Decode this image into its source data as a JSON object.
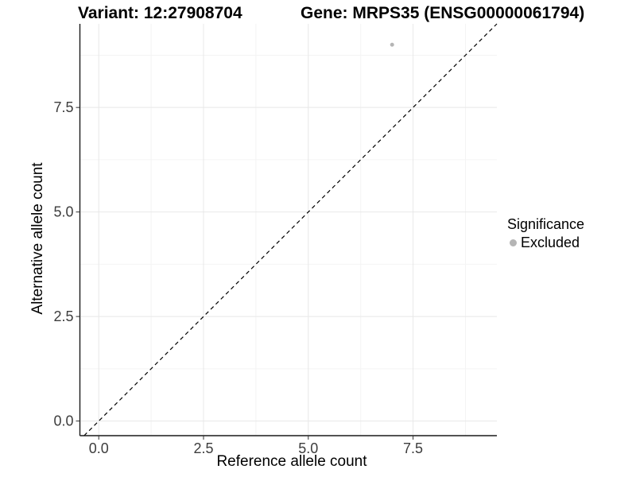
{
  "chart_data": {
    "type": "scatter",
    "title_left": "Variant: 12:27908704",
    "title_right": "Gene: MRPS35 (ENSG00000061794)",
    "xlabel": "Reference allele count",
    "ylabel": "Alternative allele count",
    "xlim": [
      -0.45,
      9.5
    ],
    "ylim": [
      -0.35,
      9.5
    ],
    "xticks": {
      "values": [
        0,
        2.5,
        5,
        7.5
      ],
      "labels": [
        "0.0",
        "2.5",
        "5.0",
        "7.5"
      ]
    },
    "yticks": {
      "values": [
        0,
        2.5,
        5,
        7.5
      ],
      "labels": [
        "0.0",
        "2.5",
        "5.0",
        "7.5"
      ]
    },
    "minor_xticks": [
      1.25,
      3.75,
      6.25,
      8.75
    ],
    "minor_yticks": [
      1.25,
      3.75,
      6.25,
      8.75
    ],
    "grid": "major+minor",
    "series": [
      {
        "name": "Excluded",
        "color": "#b5b5b5",
        "points": [
          {
            "x": 7,
            "y": 9
          }
        ]
      }
    ],
    "reference_line": {
      "kind": "identity",
      "slope": 1,
      "intercept": 0,
      "style": "dashed",
      "color": "#000000"
    },
    "legend": {
      "title": "Significance",
      "position": "right",
      "items": [
        {
          "label": "Excluded",
          "color": "#b5b5b5",
          "marker": "circle"
        }
      ]
    },
    "colors": {
      "background": "#ffffff",
      "grid_major": "#e8e8e8",
      "grid_minor": "#f4f4f4",
      "axis_line": "#1a1a1a",
      "tick_mark": "#333333",
      "tick_text": "#3d3d3d",
      "point": "#b5b5b5"
    }
  }
}
